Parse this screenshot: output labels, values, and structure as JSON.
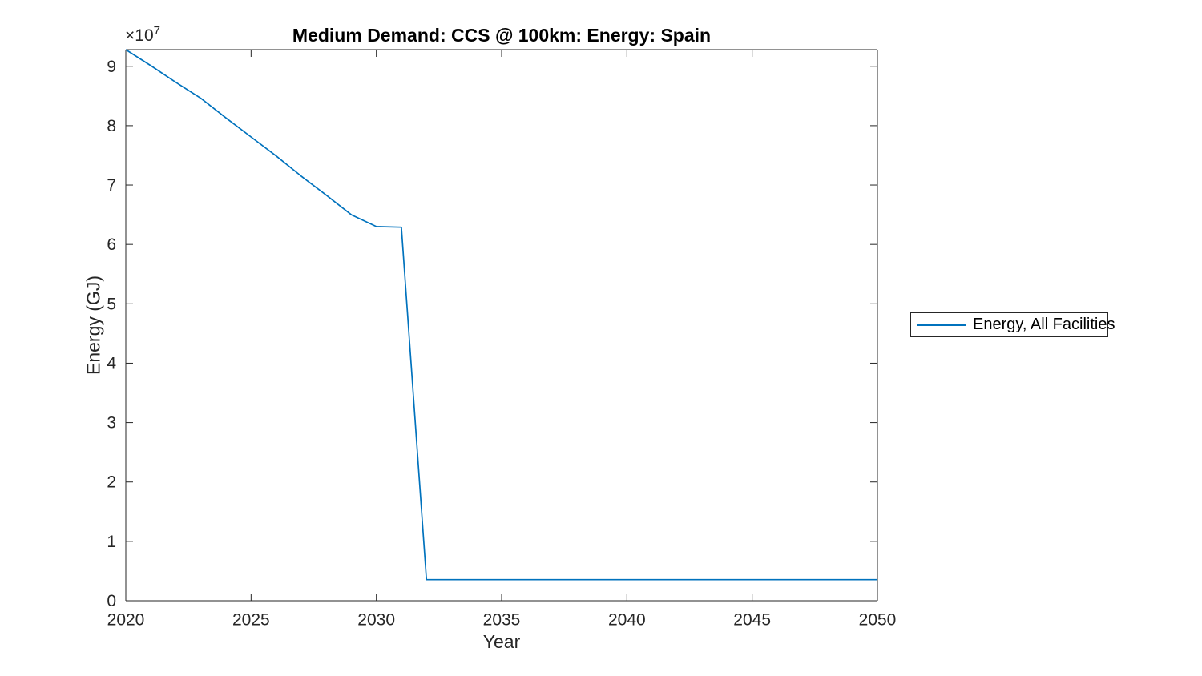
{
  "figure": {
    "background": "#ffffff",
    "axis_color": "#262626",
    "text_color": "#262626",
    "title_color": "#000000"
  },
  "chart_data": {
    "type": "line",
    "title": "Medium Demand: CCS @ 100km: Energy: Spain",
    "xlabel": "Year",
    "ylabel": "Energy (GJ)",
    "y_axis_multiplier": {
      "base": "×10",
      "exponent": "7"
    },
    "xlim": [
      2020,
      2050
    ],
    "ylim": [
      0,
      92800000
    ],
    "xticks": [
      2020,
      2025,
      2030,
      2035,
      2040,
      2045,
      2050
    ],
    "yticks": [
      0,
      10000000,
      20000000,
      30000000,
      40000000,
      50000000,
      60000000,
      70000000,
      80000000,
      90000000
    ],
    "ytick_labels": [
      "0",
      "1",
      "2",
      "3",
      "4",
      "5",
      "6",
      "7",
      "8",
      "9"
    ],
    "grid": false,
    "box": true,
    "tick_direction": "in",
    "legend_position": "right-outside",
    "series": [
      {
        "name": "Energy, All Facilities",
        "color": "#0072BD",
        "x": [
          2020,
          2021,
          2022,
          2023,
          2024,
          2025,
          2026,
          2027,
          2028,
          2029,
          2030,
          2031,
          2032,
          2033,
          2034,
          2035,
          2036,
          2037,
          2038,
          2039,
          2040,
          2041,
          2042,
          2043,
          2044,
          2045,
          2046,
          2047,
          2048,
          2049,
          2050
        ],
        "y": [
          92800000,
          90100000,
          87300000,
          84600000,
          81300000,
          78100000,
          74900000,
          71500000,
          68300000,
          65000000,
          63000000,
          62900000,
          3550000,
          3550000,
          3550000,
          3550000,
          3550000,
          3550000,
          3550000,
          3550000,
          3550000,
          3550000,
          3550000,
          3550000,
          3550000,
          3550000,
          3550000,
          3550000,
          3550000,
          3550000,
          3550000
        ]
      }
    ]
  }
}
